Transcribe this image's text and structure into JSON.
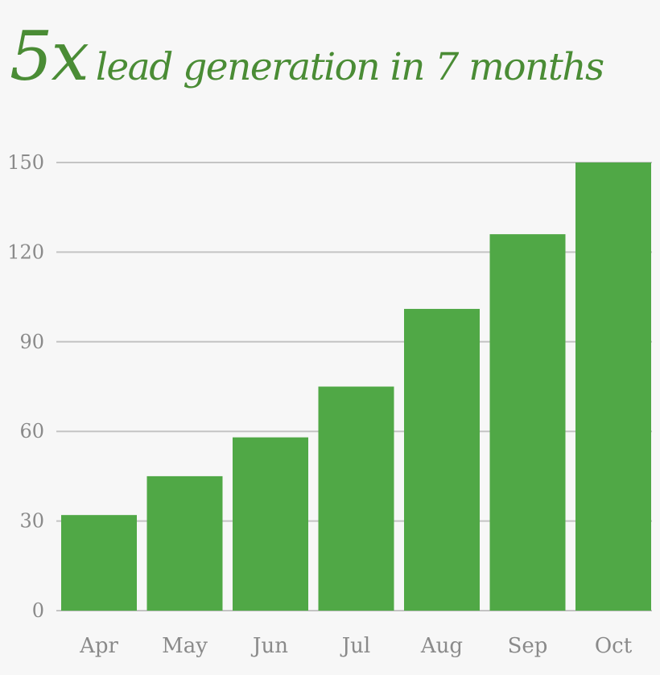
{
  "headline": {
    "big": "5x",
    "rest": "lead generation in 7 months"
  },
  "chart_data": {
    "type": "bar",
    "categories": [
      "Apr",
      "May",
      "Jun",
      "Jul",
      "Aug",
      "Sep",
      "Oct"
    ],
    "values": [
      32,
      45,
      58,
      75,
      101,
      126,
      150
    ],
    "title": "5x lead generation in 7 months",
    "xlabel": "",
    "ylabel": "",
    "ylim": [
      0,
      150
    ],
    "yticks": [
      0,
      30,
      60,
      90,
      120,
      150
    ],
    "grid": true,
    "legend": "none",
    "colors": {
      "bar": "#50a846",
      "grid": "#c4c4c4",
      "title": "#4a8c35",
      "labels": "#8a8a8a"
    }
  }
}
